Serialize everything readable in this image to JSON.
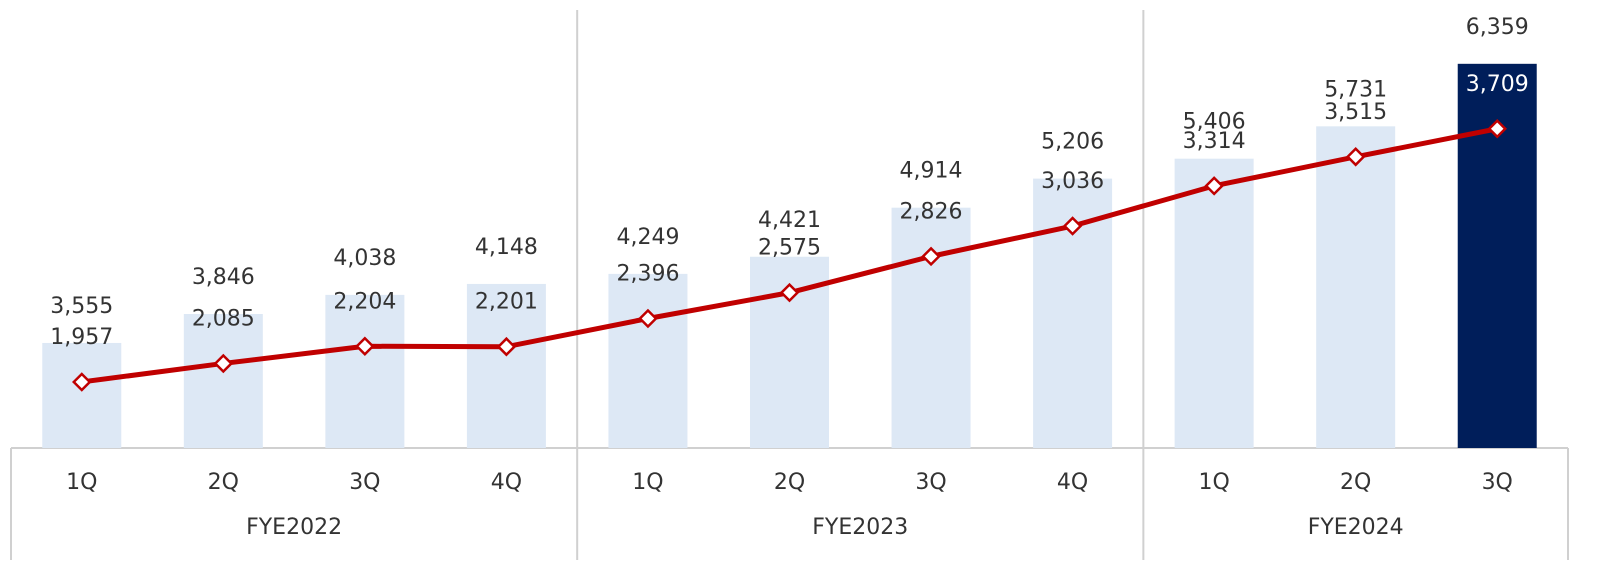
{
  "chart_data": {
    "type": "bar_line",
    "groups": [
      {
        "label": "FYE2022",
        "quarters": [
          "1Q",
          "2Q",
          "3Q",
          "4Q"
        ]
      },
      {
        "label": "FYE2023",
        "quarters": [
          "1Q",
          "2Q",
          "3Q",
          "4Q"
        ]
      },
      {
        "label": "FYE2024",
        "quarters": [
          "1Q",
          "2Q",
          "3Q"
        ]
      }
    ],
    "series": [
      {
        "type": "bar",
        "colors": [
          "#dde8f5",
          "#dde8f5",
          "#dde8f5",
          "#dde8f5",
          "#dde8f5",
          "#dde8f5",
          "#dde8f5",
          "#dde8f5",
          "#dde8f5",
          "#dde8f5",
          "#001e5a"
        ],
        "values": [
          3555,
          3846,
          4038,
          4148,
          4249,
          4421,
          4914,
          5206,
          5406,
          5731,
          6359
        ],
        "value_labels": [
          "3,555",
          "3,846",
          "4,038",
          "4,148",
          "4,249",
          "4,421",
          "4,914",
          "5,206",
          "5,406",
          "5,731",
          "6,359"
        ]
      },
      {
        "type": "line",
        "axis": "y2",
        "color": "#c00000",
        "values": [
          1957,
          2085,
          2204,
          2201,
          2396,
          2575,
          2826,
          3036,
          3314,
          3515,
          3709
        ],
        "value_labels": [
          "1,957",
          "2,085",
          "2,204",
          "2,201",
          "2,396",
          "2,575",
          "2,826",
          "3,036",
          "3,314",
          "3,515",
          "3,709"
        ]
      }
    ],
    "ylim": [
      2500,
      7000
    ],
    "y2lim": [
      1500,
      4600
    ]
  }
}
